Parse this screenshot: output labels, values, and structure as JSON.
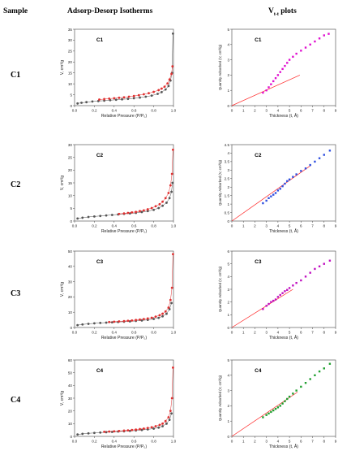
{
  "header": {
    "sample": "Sample",
    "isotherms": "Adsorp-Desorp Isotherms",
    "vt_main": "V",
    "vt_sub": "t-t",
    "vt_tail": " plots"
  },
  "colors": {
    "adsorption": "#555555",
    "desorption": "#e03030",
    "c1_tplot": "#e010d0",
    "c2_tplot": "#3050e0",
    "c3_tplot": "#c010c0",
    "c4_tplot": "#20a030",
    "fit_line": "#ff2020"
  },
  "rows": [
    {
      "sample_label": "C1"
    },
    {
      "sample_label": "C2"
    },
    {
      "sample_label": "C3"
    },
    {
      "sample_label": "C4"
    }
  ],
  "chart_data": [
    {
      "type": "scatter",
      "panel": "C1 isotherm",
      "label": "C1",
      "xlabel": "Relative Pressure (P/P₀)",
      "ylabel": "V, cm³/g",
      "xlim": [
        0,
        1.0
      ],
      "ylim": [
        0,
        35
      ],
      "xticks": [
        "0.0",
        "0.2",
        "0.4",
        "0.6",
        "0.8",
        "1.0"
      ],
      "yticks": [
        "0",
        "5",
        "10",
        "15",
        "20",
        "25",
        "30",
        "35"
      ],
      "series": [
        {
          "role": "adsorption",
          "x": [
            0.03,
            0.07,
            0.12,
            0.18,
            0.24,
            0.3,
            0.36,
            0.42,
            0.48,
            0.54,
            0.6,
            0.66,
            0.72,
            0.78,
            0.84,
            0.88,
            0.92,
            0.95,
            0.97,
            0.985,
            0.995
          ],
          "y": [
            1.0,
            1.3,
            1.6,
            1.9,
            2.1,
            2.3,
            2.5,
            2.7,
            2.9,
            3.1,
            3.4,
            3.7,
            4.1,
            4.6,
            5.4,
            6.2,
            7.4,
            9.0,
            11.5,
            15.0,
            33.0
          ]
        },
        {
          "role": "desorption",
          "x": [
            0.99,
            0.98,
            0.96,
            0.94,
            0.91,
            0.88,
            0.85,
            0.8,
            0.75,
            0.7,
            0.65,
            0.6,
            0.55,
            0.5,
            0.45,
            0.4,
            0.35,
            0.3,
            0.25
          ],
          "y": [
            18.0,
            14.5,
            12.0,
            10.2,
            8.7,
            7.8,
            7.1,
            6.3,
            5.7,
            5.2,
            4.8,
            4.4,
            4.1,
            3.8,
            3.6,
            3.4,
            3.2,
            3.0,
            2.8
          ]
        }
      ]
    },
    {
      "type": "scatter",
      "panel": "C1 t-plot",
      "label": "C1",
      "xlabel": "Thickness (t, Å)",
      "ylabel": "Quantity Adsorbed (V, cm³/g)",
      "xlim": [
        0,
        9
      ],
      "ylim": [
        0,
        5
      ],
      "xticks": [
        "0",
        "1",
        "2",
        "3",
        "4",
        "5",
        "6",
        "7",
        "8",
        "9"
      ],
      "yticks": [
        "0",
        "1",
        "2",
        "3",
        "4",
        "5"
      ],
      "x": [
        2.7,
        3.0,
        3.2,
        3.4,
        3.6,
        3.8,
        4.0,
        4.2,
        4.4,
        4.6,
        4.8,
        5.0,
        5.3,
        5.6,
        6.0,
        6.4,
        6.8,
        7.2,
        7.6,
        8.0,
        8.4
      ],
      "y": [
        0.85,
        1.0,
        1.2,
        1.4,
        1.6,
        1.8,
        2.0,
        2.2,
        2.4,
        2.6,
        2.8,
        3.0,
        3.2,
        3.4,
        3.6,
        3.8,
        4.0,
        4.2,
        4.4,
        4.6,
        4.7
      ],
      "fit": {
        "x": [
          0,
          5.9
        ],
        "y": [
          0,
          2.0
        ]
      }
    },
    {
      "type": "scatter",
      "panel": "C2 isotherm",
      "label": "C2",
      "xlabel": "Relative Pressure (P/P₀)",
      "ylabel": "V, cm³/g",
      "xlim": [
        0,
        1.0
      ],
      "ylim": [
        0,
        30
      ],
      "xticks": [
        "0.0",
        "0.2",
        "0.4",
        "0.6",
        "0.8",
        "1.0"
      ],
      "yticks": [
        "0",
        "5",
        "10",
        "15",
        "20",
        "25",
        "30"
      ],
      "series": [
        {
          "role": "adsorption",
          "x": [
            0.03,
            0.08,
            0.14,
            0.2,
            0.26,
            0.32,
            0.38,
            0.44,
            0.5,
            0.56,
            0.62,
            0.68,
            0.74,
            0.8,
            0.85,
            0.89,
            0.93,
            0.96,
            0.98,
            0.99
          ],
          "y": [
            1.0,
            1.3,
            1.6,
            1.8,
            2.0,
            2.2,
            2.4,
            2.6,
            2.8,
            3.0,
            3.2,
            3.5,
            3.9,
            4.4,
            5.1,
            6.0,
            7.2,
            9.0,
            11.5,
            15.0
          ]
        },
        {
          "role": "desorption",
          "x": [
            0.995,
            0.985,
            0.97,
            0.95,
            0.92,
            0.89,
            0.86,
            0.82,
            0.78,
            0.74,
            0.7,
            0.66,
            0.62,
            0.58,
            0.54,
            0.5,
            0.45
          ],
          "y": [
            28.0,
            18.5,
            14.0,
            11.0,
            9.0,
            7.6,
            6.6,
            5.8,
            5.1,
            4.6,
            4.2,
            3.9,
            3.6,
            3.4,
            3.2,
            3.0,
            2.8
          ]
        }
      ]
    },
    {
      "type": "scatter",
      "panel": "C2 t-plot",
      "label": "C2",
      "xlabel": "Thickness (t, Å)",
      "ylabel": "Quantity Adsorbed (V, cm³/g)",
      "xlim": [
        0,
        9
      ],
      "ylim": [
        0,
        4.5
      ],
      "xticks": [
        "0",
        "1",
        "2",
        "3",
        "4",
        "5",
        "6",
        "7",
        "8",
        "9"
      ],
      "yticks": [
        "0",
        "0.5",
        "1",
        "1.5",
        "2",
        "2.5",
        "3",
        "3.5",
        "4",
        "4.5"
      ],
      "x": [
        2.7,
        3.0,
        3.2,
        3.4,
        3.6,
        3.8,
        4.0,
        4.2,
        4.4,
        4.6,
        4.8,
        5.0,
        5.3,
        5.6,
        6.0,
        6.4,
        6.8,
        7.2,
        7.6,
        8.0,
        8.5
      ],
      "y": [
        1.05,
        1.2,
        1.35,
        1.45,
        1.55,
        1.65,
        1.8,
        1.9,
        2.05,
        2.2,
        2.35,
        2.45,
        2.6,
        2.75,
        2.95,
        3.1,
        3.3,
        3.5,
        3.7,
        3.9,
        4.15
      ],
      "fit": {
        "x": [
          0,
          6.8
        ],
        "y": [
          0,
          3.25
        ]
      }
    },
    {
      "type": "scatter",
      "panel": "C3 isotherm",
      "label": "C3",
      "xlabel": "Relative Pressure (P/P₀)",
      "ylabel": "V, cm³/g",
      "xlim": [
        0,
        1.0
      ],
      "ylim": [
        0,
        50
      ],
      "xticks": [
        "0.0",
        "0.2",
        "0.4",
        "0.6",
        "0.8",
        "1.0"
      ],
      "yticks": [
        "0",
        "10",
        "20",
        "30",
        "40",
        "50"
      ],
      "series": [
        {
          "role": "adsorption",
          "x": [
            0.03,
            0.08,
            0.14,
            0.2,
            0.26,
            0.32,
            0.38,
            0.44,
            0.5,
            0.56,
            0.62,
            0.68,
            0.74,
            0.8,
            0.85,
            0.89,
            0.93,
            0.96,
            0.98
          ],
          "y": [
            1.5,
            2.0,
            2.4,
            2.7,
            3.0,
            3.2,
            3.4,
            3.6,
            3.8,
            4.0,
            4.3,
            4.6,
            5.0,
            5.6,
            6.3,
            7.3,
            9.0,
            12.0,
            16.0
          ]
        },
        {
          "role": "desorption",
          "x": [
            0.995,
            0.985,
            0.97,
            0.95,
            0.92,
            0.89,
            0.86,
            0.82,
            0.78,
            0.74,
            0.7,
            0.66,
            0.62,
            0.58,
            0.54,
            0.5,
            0.45,
            0.4,
            0.35
          ],
          "y": [
            48.0,
            26.0,
            18.0,
            13.0,
            10.5,
            9.0,
            8.0,
            7.1,
            6.4,
            5.9,
            5.5,
            5.2,
            4.9,
            4.6,
            4.4,
            4.2,
            4.0,
            3.8,
            3.6
          ]
        }
      ]
    },
    {
      "type": "scatter",
      "panel": "C3 t-plot",
      "label": "C3",
      "xlabel": "Thickness (t, Å)",
      "ylabel": "Quantity Adsorbed (V, cm³/g)",
      "xlim": [
        0,
        9
      ],
      "ylim": [
        0,
        6
      ],
      "xticks": [
        "0",
        "1",
        "2",
        "3",
        "4",
        "5",
        "6",
        "7",
        "8",
        "9"
      ],
      "yticks": [
        "0",
        "1",
        "2",
        "3",
        "4",
        "5",
        "6"
      ],
      "x": [
        2.7,
        3.0,
        3.2,
        3.4,
        3.6,
        3.8,
        4.0,
        4.2,
        4.4,
        4.6,
        4.8,
        5.0,
        5.3,
        5.6,
        6.0,
        6.4,
        6.8,
        7.2,
        7.6,
        8.0,
        8.5
      ],
      "y": [
        1.45,
        1.7,
        1.85,
        2.0,
        2.1,
        2.2,
        2.4,
        2.55,
        2.7,
        2.85,
        2.95,
        3.1,
        3.3,
        3.5,
        3.7,
        4.0,
        4.3,
        4.6,
        4.8,
        5.0,
        5.25
      ],
      "fit": {
        "x": [
          0,
          5.3
        ],
        "y": [
          0,
          3.0
        ]
      }
    },
    {
      "type": "scatter",
      "panel": "C4 isotherm",
      "label": "C4",
      "xlabel": "Relative Pressure (P/P₀)",
      "ylabel": "V, cm³/g",
      "xlim": [
        0,
        1.0
      ],
      "ylim": [
        0,
        60
      ],
      "xticks": [
        "0.0",
        "0.2",
        "0.4",
        "0.6",
        "0.8",
        "1.0"
      ],
      "yticks": [
        "0",
        "10",
        "20",
        "30",
        "40",
        "50",
        "60"
      ],
      "series": [
        {
          "role": "adsorption",
          "x": [
            0.03,
            0.08,
            0.14,
            0.2,
            0.26,
            0.32,
            0.38,
            0.44,
            0.5,
            0.56,
            0.62,
            0.68,
            0.74,
            0.8,
            0.85,
            0.89,
            0.93,
            0.96,
            0.98
          ],
          "y": [
            1.5,
            2.0,
            2.4,
            2.7,
            3.0,
            3.3,
            3.5,
            3.8,
            4.0,
            4.3,
            4.6,
            5.0,
            5.5,
            6.1,
            6.9,
            8.0,
            10.0,
            13.0,
            18.0
          ]
        },
        {
          "role": "desorption",
          "x": [
            0.995,
            0.985,
            0.97,
            0.95,
            0.92,
            0.89,
            0.86,
            0.82,
            0.78,
            0.74,
            0.7,
            0.66,
            0.62,
            0.58,
            0.54,
            0.5,
            0.45,
            0.4,
            0.35,
            0.3
          ],
          "y": [
            54.0,
            30.0,
            20.0,
            15.0,
            12.0,
            10.0,
            9.0,
            8.0,
            7.2,
            6.6,
            6.1,
            5.7,
            5.3,
            5.0,
            4.7,
            4.5,
            4.2,
            4.0,
            3.8,
            3.6
          ]
        }
      ]
    },
    {
      "type": "scatter",
      "panel": "C4 t-plot",
      "label": "C4",
      "xlabel": "Thickness (t, Å)",
      "ylabel": "Quantity Adsorbed (V, cm³/g)",
      "xlim": [
        0,
        9
      ],
      "ylim": [
        0,
        5
      ],
      "xticks": [
        "0",
        "1",
        "2",
        "3",
        "4",
        "5",
        "6",
        "7",
        "8",
        "9"
      ],
      "yticks": [
        "0",
        "1",
        "2",
        "3",
        "4",
        "5"
      ],
      "x": [
        2.7,
        3.0,
        3.2,
        3.4,
        3.6,
        3.8,
        4.0,
        4.2,
        4.4,
        4.6,
        4.8,
        5.0,
        5.3,
        5.6,
        6.0,
        6.4,
        6.8,
        7.2,
        7.6,
        8.0,
        8.5
      ],
      "y": [
        1.25,
        1.4,
        1.5,
        1.6,
        1.7,
        1.8,
        1.9,
        2.0,
        2.15,
        2.3,
        2.45,
        2.6,
        2.8,
        3.0,
        3.25,
        3.5,
        3.75,
        4.0,
        4.25,
        4.45,
        4.75
      ],
      "fit": {
        "x": [
          0,
          5.7
        ],
        "y": [
          0,
          2.9
        ]
      }
    }
  ]
}
